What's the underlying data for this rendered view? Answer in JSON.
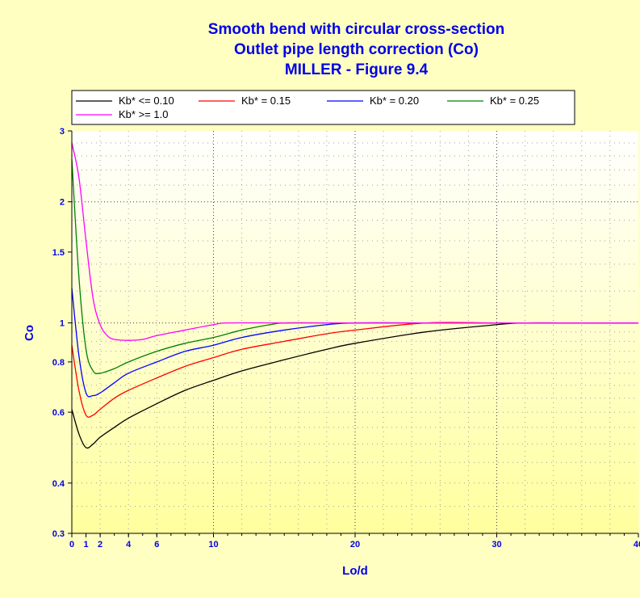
{
  "chart_data": {
    "type": "line",
    "title": [
      "Smooth bend with circular cross-section",
      "Outlet pipe length correction (Co)",
      "MILLER - Figure 9.4"
    ],
    "xlabel": "Lo/d",
    "ylabel": "Co",
    "xlim": [
      0,
      40
    ],
    "ylim": [
      0.3,
      3
    ],
    "yscale": "log",
    "grid": true,
    "legend_position": "top",
    "x_ticks": [
      0,
      1,
      2,
      4,
      6,
      10,
      20,
      30,
      40
    ],
    "x_tick_labels": [
      "0",
      "1",
      "2",
      "4",
      "6",
      "10",
      "20",
      "30",
      "40"
    ],
    "y_ticks": [
      0.3,
      0.4,
      0.6,
      0.8,
      1,
      1.5,
      2,
      3
    ],
    "y_tick_labels": [
      "0.3",
      "0.4",
      "0.6",
      "0.8",
      "1",
      "1.5",
      "2",
      "3"
    ],
    "series": [
      {
        "name": "Kb* <= 0.10",
        "color": "#000000",
        "x": [
          0,
          0.5,
          1,
          1.5,
          2,
          3,
          4,
          6,
          8,
          10,
          12,
          15,
          18,
          20,
          25,
          30,
          32,
          35,
          40
        ],
        "y": [
          0.61,
          0.53,
          0.49,
          0.5,
          0.52,
          0.55,
          0.58,
          0.63,
          0.68,
          0.72,
          0.76,
          0.81,
          0.86,
          0.89,
          0.95,
          0.99,
          1.0,
          1.0,
          1.0
        ]
      },
      {
        "name": "Kb* = 0.15",
        "color": "#ff0000",
        "x": [
          0,
          0.5,
          1,
          1.5,
          2,
          3,
          4,
          6,
          8,
          10,
          12,
          15,
          18,
          20,
          25,
          30,
          35,
          40
        ],
        "y": [
          0.88,
          0.68,
          0.59,
          0.59,
          0.61,
          0.65,
          0.68,
          0.73,
          0.78,
          0.82,
          0.86,
          0.9,
          0.94,
          0.96,
          1.0,
          1.0,
          1.0,
          1.0
        ]
      },
      {
        "name": "Kb* = 0.20",
        "color": "#0000ff",
        "x": [
          0,
          0.5,
          1,
          1.5,
          2,
          3,
          4,
          6,
          8,
          10,
          12,
          15,
          18,
          20,
          25,
          30,
          35,
          40
        ],
        "y": [
          1.22,
          0.83,
          0.67,
          0.66,
          0.67,
          0.71,
          0.75,
          0.8,
          0.85,
          0.88,
          0.92,
          0.96,
          0.99,
          1.0,
          1.0,
          1.0,
          1.0,
          1.0
        ]
      },
      {
        "name": "Kb* = 0.25",
        "color": "#008000",
        "x": [
          0,
          0.5,
          1,
          1.5,
          2,
          3,
          4,
          6,
          8,
          10,
          12,
          14,
          15,
          18,
          20,
          25,
          30,
          35,
          40
        ],
        "y": [
          2.55,
          1.3,
          0.86,
          0.76,
          0.75,
          0.77,
          0.8,
          0.85,
          0.89,
          0.92,
          0.96,
          0.99,
          1.0,
          1.0,
          1.0,
          1.0,
          1.0,
          1.0,
          1.0
        ]
      },
      {
        "name": "Kb* >= 1.0",
        "color": "#ff00ff",
        "x": [
          0,
          0.5,
          1,
          1.5,
          2,
          2.5,
          3,
          4,
          5,
          6,
          8,
          10,
          11,
          15,
          20,
          25,
          30,
          35,
          40
        ],
        "y": [
          2.8,
          2.3,
          1.6,
          1.15,
          0.99,
          0.93,
          0.91,
          0.905,
          0.91,
          0.93,
          0.96,
          0.99,
          1.0,
          1.0,
          1.0,
          1.0,
          1.0,
          1.0,
          1.0
        ]
      }
    ]
  }
}
